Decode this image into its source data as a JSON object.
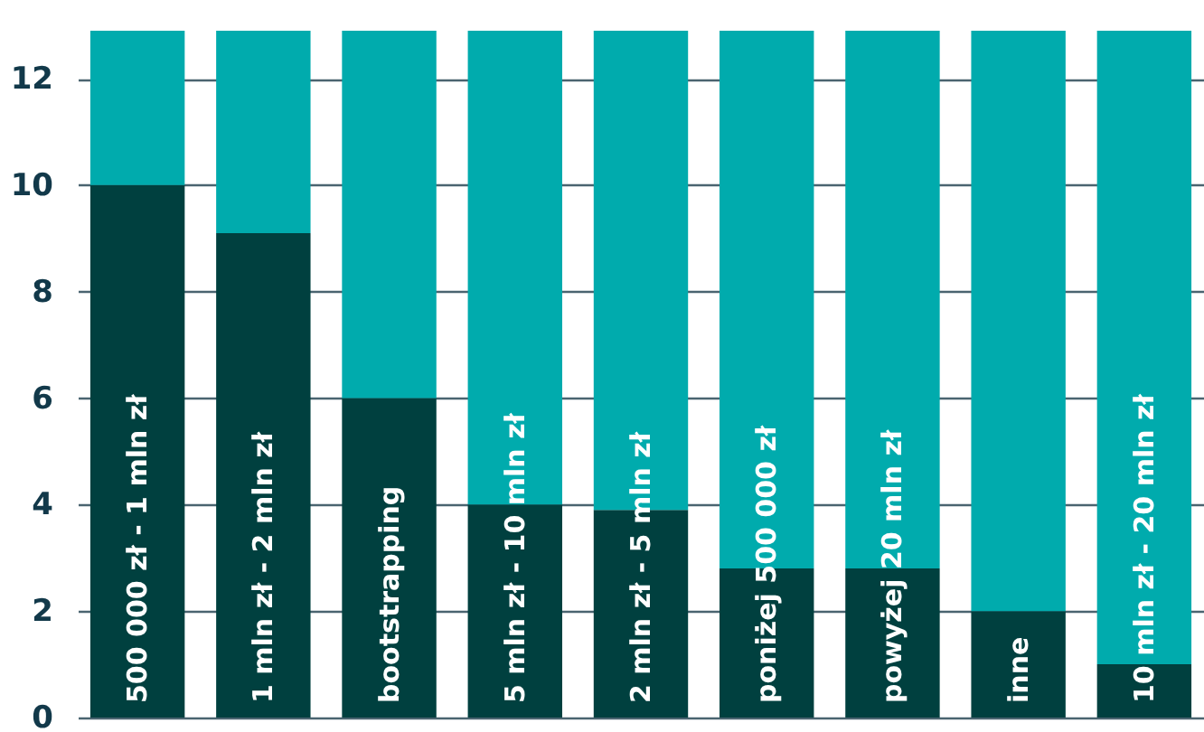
{
  "chart_data": {
    "type": "bar",
    "stacked": true,
    "categories": [
      "500 000 zł - 1 mln zł",
      "1 mln zł - 2 mln zł",
      "bootstrapping",
      "5 mln zł - 10 mln zł",
      "2 mln zł - 5 mln zł",
      "poniżej 500 000 zł",
      "powyżej 20 mln zł",
      "inne",
      "10 mln zł - 20 mln zł"
    ],
    "series": [
      {
        "color": "#00403f",
        "values": [
          10,
          9.1,
          6,
          4,
          3.9,
          2.8,
          2.8,
          2,
          1
        ]
      },
      {
        "color": "#00abad",
        "values": [
          2.9,
          3.8,
          6.9,
          8.9,
          9,
          10.1,
          10.1,
          10.9,
          11.9
        ]
      }
    ],
    "ylim": [
      0,
      12.9
    ],
    "yticks": [
      0,
      2,
      4,
      6,
      8,
      10,
      12
    ],
    "grid": "y",
    "legend": false
  }
}
